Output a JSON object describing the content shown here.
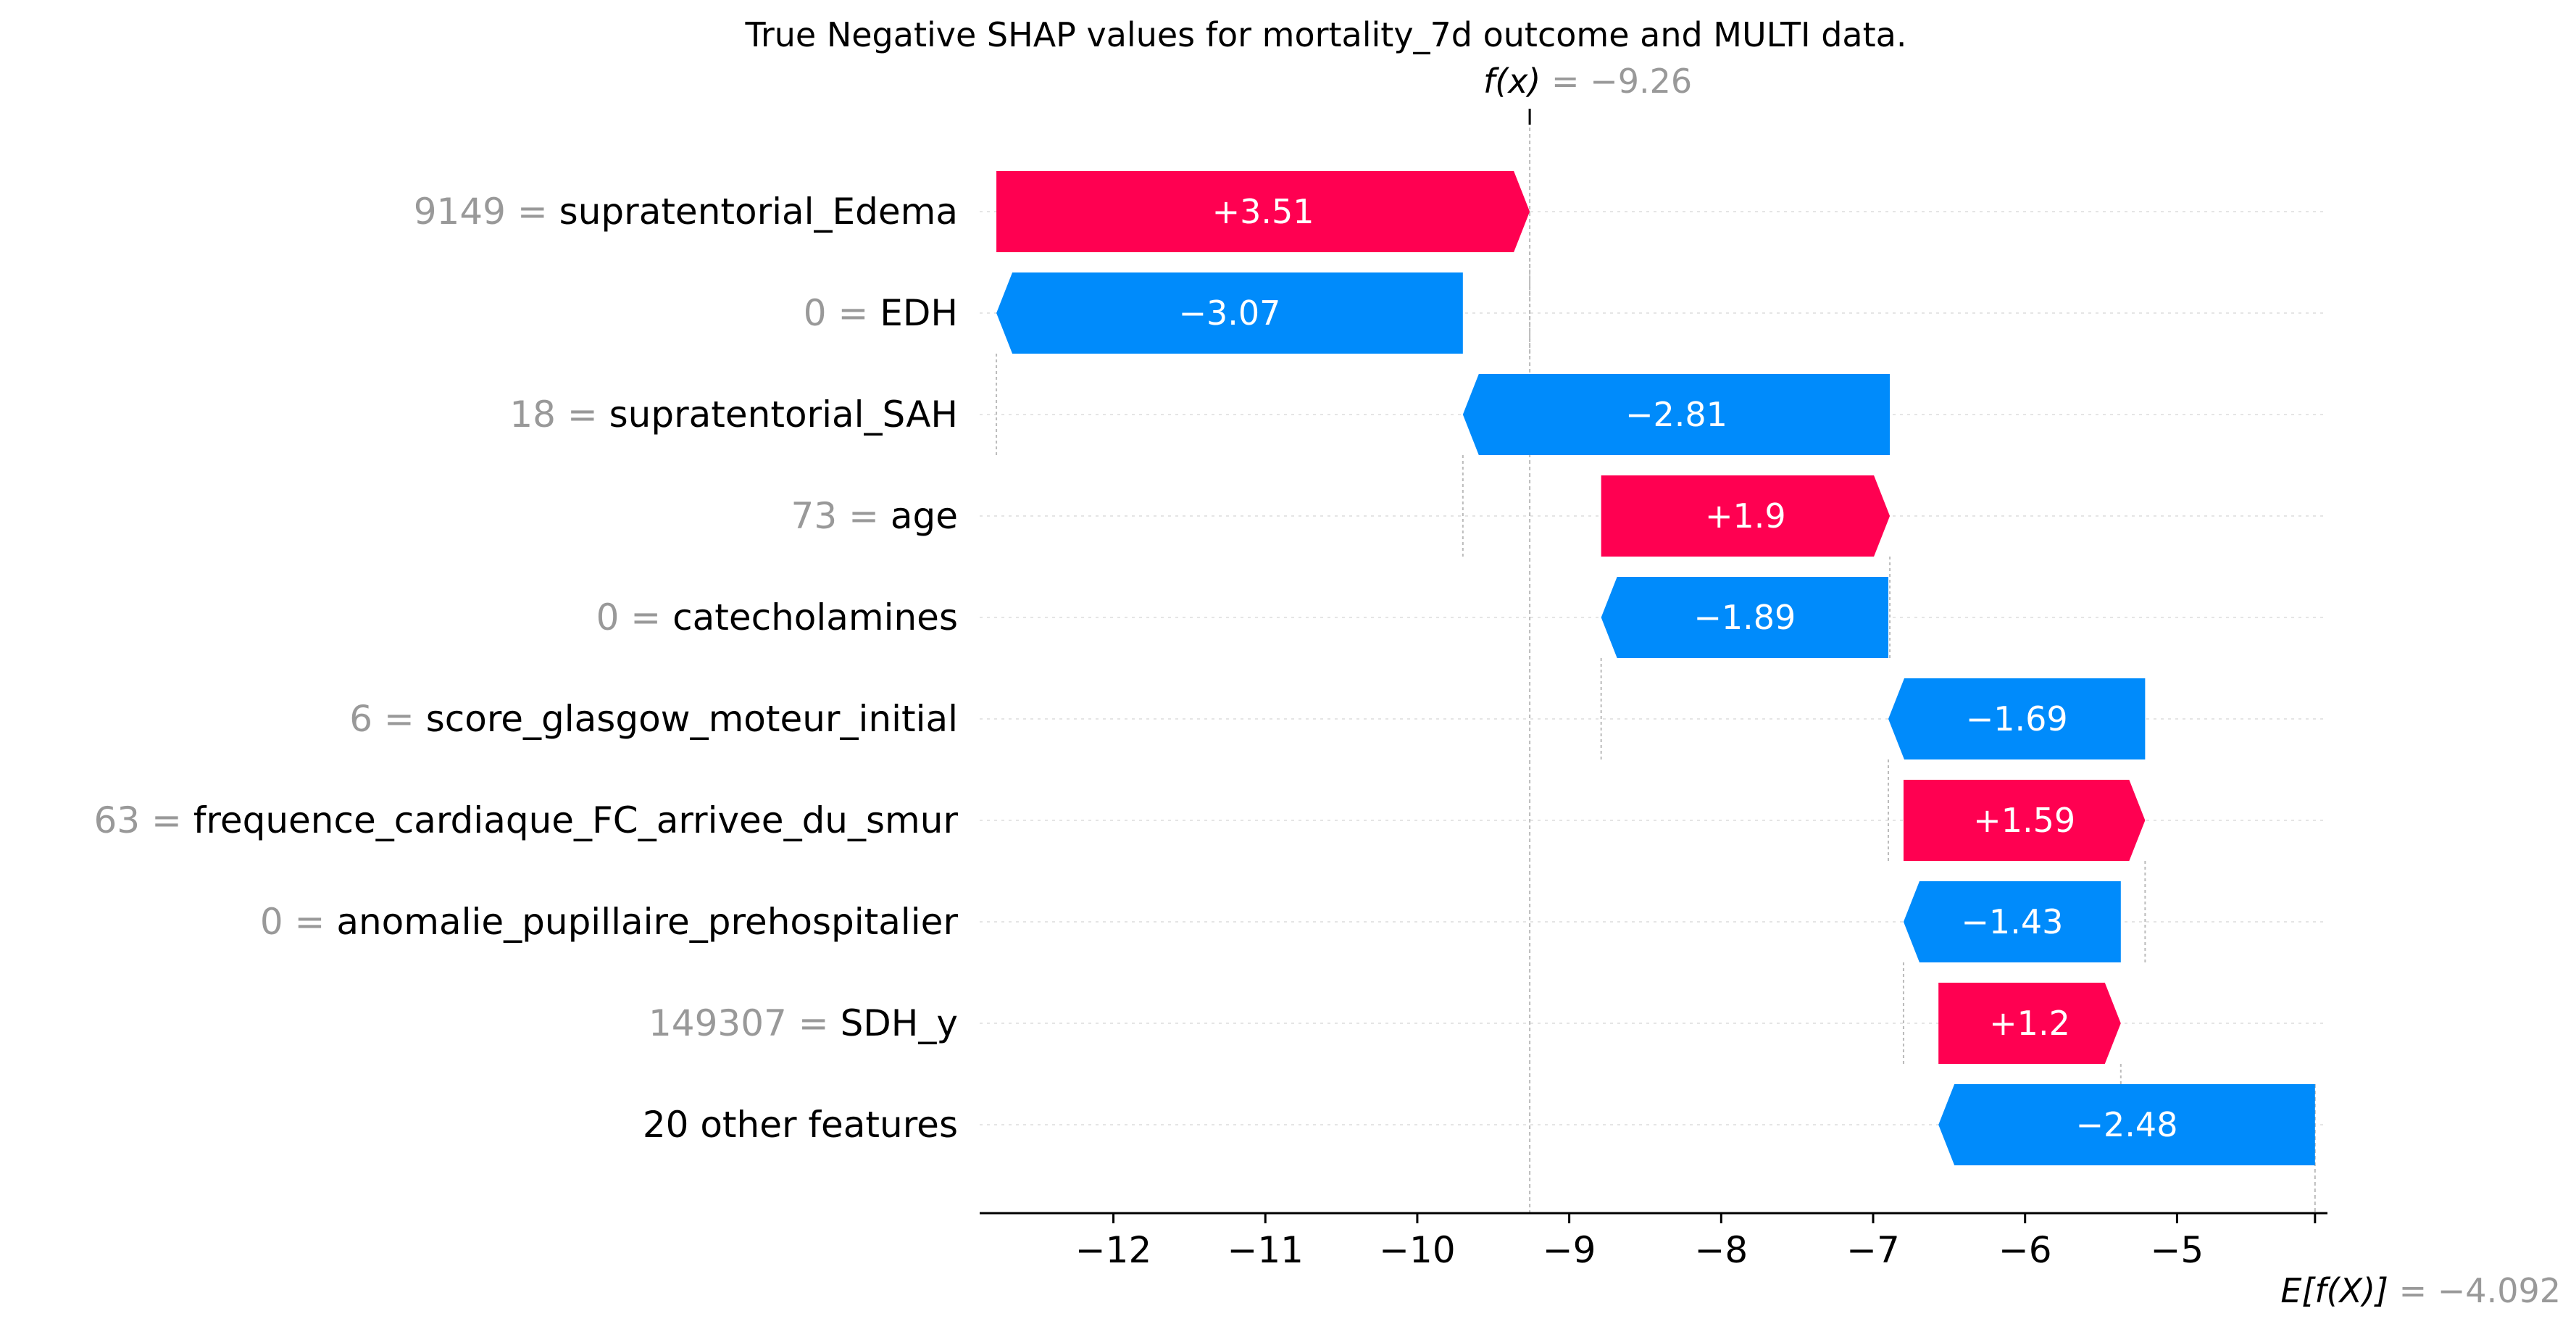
{
  "chart_data": {
    "type": "waterfall",
    "title": "True Negative SHAP values for mortality_7d outcome and MULTI data.",
    "fx_label": "f(x)",
    "fx_value_text": " = −9.26",
    "fx_value": -9.26,
    "ex_label": "E[f(X)]",
    "ex_value_text": " = −4.092",
    "ex_value": -4.092,
    "xlim": [
      -12.88,
      -4.01
    ],
    "x_ticks": [
      -12,
      -11,
      -10,
      -9,
      -8,
      -7,
      -6,
      -5
    ],
    "x_tick_labels": [
      "−12",
      "−11",
      "−10",
      "−9",
      "−8",
      "−7",
      "−6",
      "−5"
    ],
    "features": [
      {
        "value": "9149",
        "name": "supratentorial_Edema",
        "shap": 3.51,
        "label": "+3.51",
        "start": -12.77,
        "end": -9.26
      },
      {
        "value": "0",
        "name": "EDH",
        "shap": -3.07,
        "label": "−3.07",
        "start": -9.7,
        "end": -12.77
      },
      {
        "value": "18",
        "name": "supratentorial_SAH",
        "shap": -2.81,
        "label": "−2.81",
        "start": -6.89,
        "end": -9.7
      },
      {
        "value": "73",
        "name": "age",
        "shap": 1.9,
        "label": "+1.9",
        "start": -8.79,
        "end": -6.89
      },
      {
        "value": "0",
        "name": "catecholamines",
        "shap": -1.89,
        "label": "−1.89",
        "start": -6.9,
        "end": -8.79
      },
      {
        "value": "6",
        "name": "score_glasgow_moteur_initial",
        "shap": -1.69,
        "label": "−1.69",
        "start": -5.21,
        "end": -6.9
      },
      {
        "value": "63",
        "name": "frequence_cardiaque_FC_arrivee_du_smur",
        "shap": 1.59,
        "label": "+1.59",
        "start": -6.8,
        "end": -5.21
      },
      {
        "value": "0",
        "name": "anomalie_pupillaire_prehospitalier",
        "shap": -1.43,
        "label": "−1.43",
        "start": -5.37,
        "end": -6.8
      },
      {
        "value": "149307",
        "name": "SDH_y",
        "shap": 1.2,
        "label": "+1.2",
        "start": -6.57,
        "end": -5.37
      },
      {
        "value": "",
        "name": "20 other features",
        "shap": -2.48,
        "label": "−2.48",
        "start": -4.092,
        "end": -6.57
      }
    ],
    "colors": {
      "positive": "#ff0051",
      "negative": "#008bfb",
      "grey_text": "#999999",
      "text": "#000000",
      "guide": "#cccccc",
      "gridline": "#e5e5e5"
    }
  }
}
